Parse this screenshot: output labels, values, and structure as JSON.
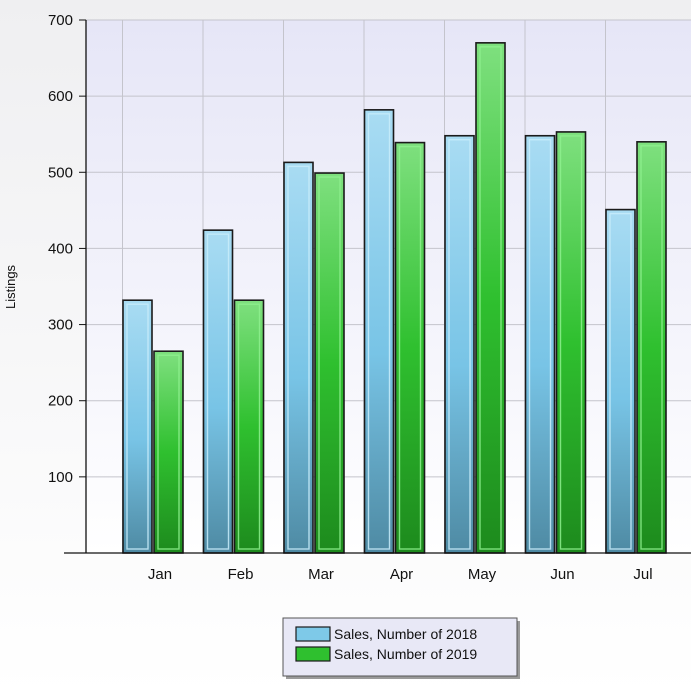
{
  "chart_data": {
    "type": "bar",
    "categories": [
      "Jan",
      "Feb",
      "Mar",
      "Apr",
      "May",
      "Jun",
      "Jul"
    ],
    "series": [
      {
        "name": "Sales, Number of 2018",
        "values": [
          332,
          424,
          513,
          582,
          548,
          548,
          451
        ],
        "color": "#7ec9e8"
      },
      {
        "name": "Sales, Number of 2019",
        "values": [
          265,
          332,
          499,
          539,
          670,
          553,
          540
        ],
        "color": "#2fc02f"
      }
    ],
    "title": "",
    "xlabel": "",
    "ylabel": "Listings",
    "ylim": [
      0,
      700
    ],
    "yticks": [
      100,
      200,
      300,
      400,
      500,
      600,
      700
    ],
    "grid": true,
    "legend_position": "bottom-center"
  }
}
